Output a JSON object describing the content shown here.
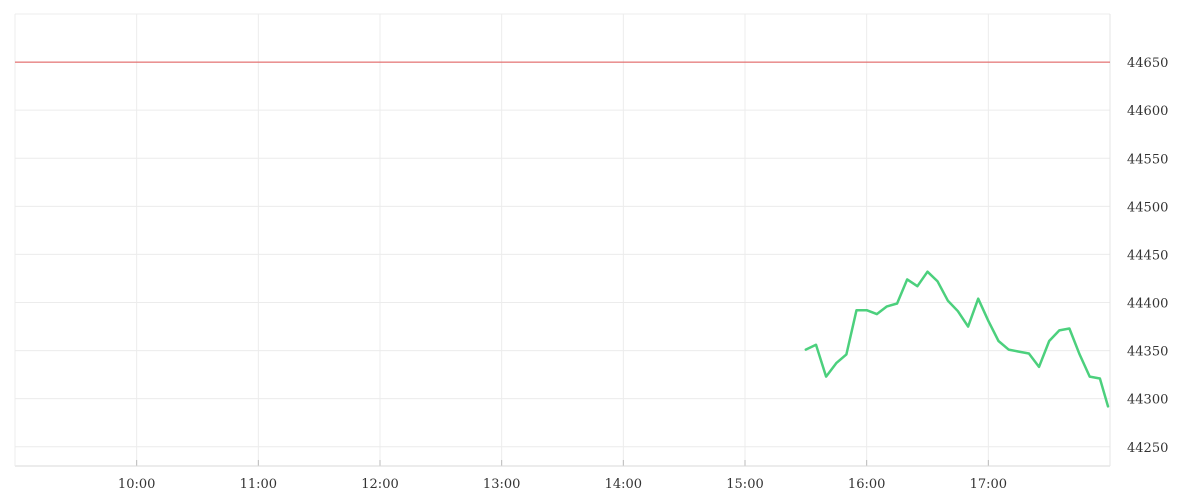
{
  "chart_data": {
    "type": "line",
    "title": "",
    "xlabel": "",
    "ylabel": "",
    "x_ticks": [
      "10:00",
      "11:00",
      "12:00",
      "13:00",
      "14:00",
      "15:00",
      "16:00",
      "17:00"
    ],
    "y_ticks": [
      44250,
      44300,
      44350,
      44400,
      44450,
      44500,
      44550,
      44600,
      44650
    ],
    "xlim": [
      "09:00",
      "18:00"
    ],
    "ylim": [
      44230,
      44700
    ],
    "grid": true,
    "reference_line": {
      "value": 44650,
      "color": "#e05555"
    },
    "series": [
      {
        "color": "#4cd07d",
        "x": [
          "15:30",
          "15:35",
          "15:40",
          "15:45",
          "15:50",
          "15:55",
          "16:00",
          "16:05",
          "16:10",
          "16:15",
          "16:20",
          "16:25",
          "16:30",
          "16:35",
          "16:40",
          "16:45",
          "16:50",
          "16:55",
          "17:00",
          "17:05",
          "17:10",
          "17:15",
          "17:20",
          "17:25",
          "17:30",
          "17:35",
          "17:40",
          "17:45",
          "17:50",
          "17:55"
        ],
        "values": [
          44351,
          44356,
          44323,
          44337,
          44346,
          44392,
          44392,
          44388,
          44396,
          44399,
          44424,
          44417,
          44432,
          44422,
          44402,
          44391,
          44375,
          44404,
          44381,
          44360,
          44351,
          44349,
          44347,
          44333,
          44360,
          44371,
          44373,
          44346,
          44323,
          44321
        ]
      }
    ],
    "last_point": {
      "x": "17:59",
      "value": 44292
    }
  }
}
